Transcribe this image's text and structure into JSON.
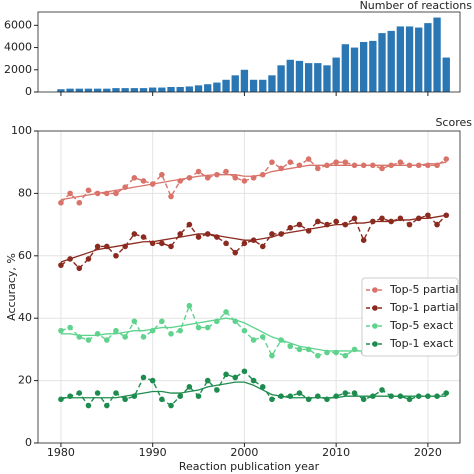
{
  "chart_data": [
    {
      "type": "bar",
      "title": "Number of reactions",
      "color": "#2a77b4",
      "x": [
        1980,
        1981,
        1982,
        1983,
        1984,
        1985,
        1986,
        1987,
        1988,
        1989,
        1990,
        1991,
        1992,
        1993,
        1994,
        1995,
        1996,
        1997,
        1998,
        1999,
        2000,
        2001,
        2002,
        2003,
        2004,
        2005,
        2006,
        2007,
        2008,
        2009,
        2010,
        2011,
        2012,
        2013,
        2014,
        2015,
        2016,
        2017,
        2018,
        2019,
        2020,
        2021,
        2022
      ],
      "values": [
        250,
        300,
        300,
        300,
        300,
        300,
        350,
        350,
        350,
        350,
        400,
        400,
        450,
        450,
        500,
        600,
        700,
        850,
        1100,
        1500,
        2000,
        1100,
        1100,
        1500,
        2400,
        2900,
        2800,
        2600,
        2600,
        2400,
        3100,
        4300,
        4000,
        4500,
        4600,
        5300,
        5500,
        5900,
        5900,
        5800,
        6200,
        6700,
        3100
      ],
      "xlim": [
        1977.5,
        2023.5
      ],
      "ylim": [
        0,
        7200
      ],
      "yticks": [
        0,
        2000,
        4000,
        6000
      ],
      "grid": false
    },
    {
      "type": "line",
      "title": "Scores",
      "x_label": "Reaction publication year",
      "y_label": "Accuracy, %",
      "x": [
        1980,
        1981,
        1982,
        1983,
        1984,
        1985,
        1986,
        1987,
        1988,
        1989,
        1990,
        1991,
        1992,
        1993,
        1994,
        1995,
        1996,
        1997,
        1998,
        1999,
        2000,
        2001,
        2002,
        2003,
        2004,
        2005,
        2006,
        2007,
        2008,
        2009,
        2010,
        2011,
        2012,
        2013,
        2014,
        2015,
        2016,
        2017,
        2018,
        2019,
        2020,
        2021,
        2022
      ],
      "xlim": [
        1977.5,
        2023.5
      ],
      "xticks": [
        1980,
        1990,
        2000,
        2010,
        2020
      ],
      "ylim": [
        0,
        100
      ],
      "yticks": [
        0,
        20,
        40,
        60,
        80,
        100
      ],
      "grid": true,
      "legend": "right",
      "series": [
        {
          "name": "Top-5 partial",
          "color": "#d9736a",
          "values": [
            77,
            80,
            77,
            81,
            80,
            80,
            80,
            82,
            85,
            84,
            83,
            86,
            79,
            84,
            85,
            87,
            85,
            86,
            87,
            85,
            84,
            85,
            86,
            90,
            88,
            90,
            89,
            91,
            88,
            89,
            90,
            90,
            89,
            89,
            89,
            88,
            89,
            90,
            89,
            89,
            89,
            89,
            91
          ],
          "trend": [
            78,
            78.5,
            79,
            79.5,
            80,
            80.5,
            81,
            81.5,
            82,
            82.5,
            83,
            83.5,
            84,
            84.5,
            85,
            85.5,
            85.8,
            86,
            86,
            86,
            85.5,
            85.5,
            86,
            87,
            87.5,
            88,
            88.5,
            89,
            89,
            89,
            89,
            89,
            89,
            89,
            89,
            89,
            89,
            89,
            89,
            89,
            89.5,
            89.5,
            90
          ]
        },
        {
          "name": "Top-1 partial",
          "color": "#8b2a1f",
          "values": [
            57,
            59,
            56,
            59,
            63,
            63,
            60,
            63,
            67,
            66,
            64,
            64,
            63,
            67,
            70,
            66,
            67,
            66,
            64,
            61,
            64,
            65,
            63,
            67,
            67,
            69,
            70,
            68,
            71,
            70,
            71,
            70,
            72,
            65,
            71,
            72,
            71,
            72,
            70,
            72,
            73,
            70,
            73
          ],
          "trend": [
            58,
            59,
            60,
            61,
            62,
            62.5,
            63,
            63.5,
            64,
            64.5,
            64.5,
            65,
            65.5,
            66,
            66.5,
            67,
            67,
            66.5,
            66,
            65.5,
            65,
            65,
            65.5,
            66,
            67,
            67.5,
            68,
            68.5,
            69,
            69.5,
            70,
            70,
            70.5,
            70.5,
            71,
            71,
            71,
            71.5,
            71.5,
            72,
            72,
            72.5,
            73
          ]
        },
        {
          "name": "Top-5 exact",
          "color": "#5fd38d",
          "values": [
            36,
            37,
            34,
            33,
            35,
            33,
            36,
            34,
            39,
            34,
            36,
            39,
            35,
            36,
            44,
            37,
            37,
            39,
            42,
            39,
            36,
            33,
            34,
            28,
            33,
            31,
            30,
            30,
            28,
            29,
            29,
            28,
            30,
            29,
            32,
            30,
            30,
            31,
            29,
            30,
            29,
            31,
            32
          ],
          "trend": [
            35,
            35,
            34.5,
            34.5,
            34.5,
            35,
            35,
            35.5,
            36,
            36,
            36.5,
            37,
            37,
            37.5,
            38,
            38.5,
            39,
            39.5,
            40,
            39.5,
            38.5,
            37,
            35.5,
            34,
            33,
            32,
            31,
            30.5,
            30,
            29.5,
            29.5,
            29.5,
            29.5,
            29.5,
            29.8,
            30,
            30,
            30,
            30,
            30,
            30,
            30,
            30
          ]
        },
        {
          "name": "Top-1 exact",
          "color": "#1e8c4e",
          "values": [
            14,
            15,
            16,
            12,
            16,
            12,
            16,
            14,
            15,
            21,
            20,
            14,
            12,
            15,
            18,
            15,
            20,
            17,
            22,
            21,
            23,
            20,
            18,
            14,
            15,
            15,
            16,
            14,
            15,
            14,
            15,
            16,
            16,
            14,
            15,
            17,
            15,
            15,
            14,
            15,
            15,
            15,
            16
          ],
          "trend": [
            14.5,
            14.5,
            14.5,
            14.5,
            14.5,
            14.5,
            14.5,
            15,
            15.5,
            16,
            16.5,
            16.5,
            16,
            16,
            16.5,
            17,
            18,
            18.5,
            19,
            19.5,
            19.5,
            18.5,
            17,
            15.5,
            15,
            14.5,
            14.5,
            14.5,
            14.5,
            14.5,
            14.5,
            15,
            15,
            15,
            15,
            15,
            15,
            15,
            15,
            15,
            15,
            15,
            15
          ]
        }
      ]
    }
  ]
}
